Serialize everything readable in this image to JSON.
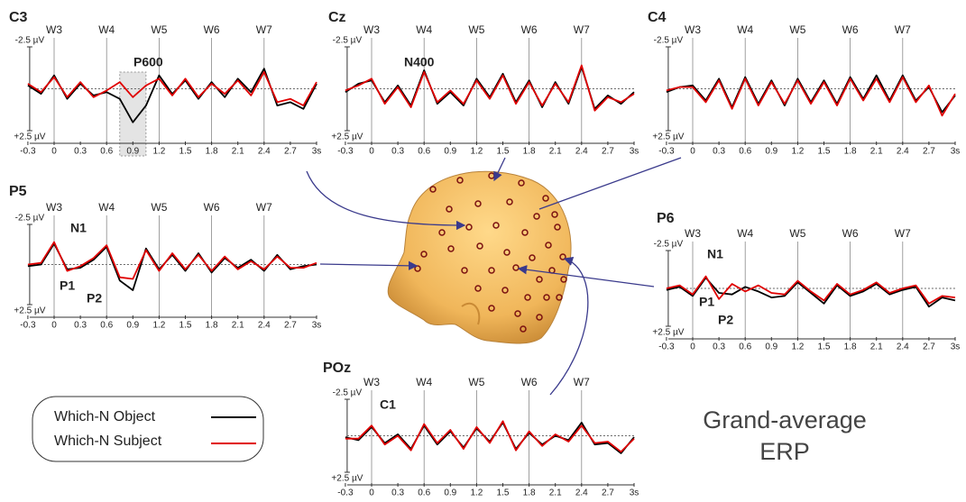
{
  "chart_data": [
    {
      "type": "line",
      "title": "C3",
      "x": [
        -0.3,
        -0.15,
        0,
        0.15,
        0.3,
        0.45,
        0.6,
        0.75,
        0.9,
        1.05,
        1.2,
        1.35,
        1.5,
        1.65,
        1.8,
        1.95,
        2.1,
        2.25,
        2.4,
        2.55,
        2.7,
        2.85,
        3.0
      ],
      "series": [
        {
          "name": "Which-N Object",
          "color": "#000000",
          "values": [
            -0.2,
            0.3,
            -0.8,
            0.6,
            -0.3,
            0.4,
            0.2,
            0.6,
            2.0,
            1.0,
            -0.8,
            0.3,
            -0.5,
            0.6,
            -0.4,
            0.5,
            -0.6,
            0.2,
            -1.2,
            1.0,
            0.8,
            1.2,
            -0.3
          ]
        },
        {
          "name": "Which-N Subject",
          "color": "#e00000",
          "values": [
            -0.3,
            0.2,
            -0.7,
            0.5,
            -0.4,
            0.5,
            0.1,
            -0.4,
            0.5,
            -0.2,
            -0.6,
            0.4,
            -0.6,
            0.5,
            -0.3,
            0.3,
            -0.5,
            0.4,
            -1.0,
            0.8,
            0.6,
            1.0,
            -0.4
          ]
        }
      ],
      "xlim": [
        -0.3,
        3
      ],
      "ylim": [
        2.5,
        -2.5
      ],
      "xticks": [
        -0.3,
        0,
        0.3,
        0.6,
        0.9,
        1.2,
        1.5,
        1.8,
        2.1,
        2.4,
        2.7,
        {
          "value": 3,
          "label": "3s"
        }
      ],
      "yticks": [
        {
          "value": -2.5,
          "label": "-2.5 µV"
        },
        {
          "value": 2.5,
          "label": "+2.5 µV"
        }
      ],
      "markers": [
        {
          "value": 0,
          "label": "W3"
        },
        {
          "value": 0.6,
          "label": "W4"
        },
        {
          "value": 1.2,
          "label": "W5"
        },
        {
          "value": 1.8,
          "label": "W6"
        },
        {
          "value": 2.4,
          "label": "W7"
        }
      ],
      "span": [
        0.75,
        1.05
      ],
      "annotations": [
        "P600"
      ]
    },
    {
      "type": "line",
      "title": "Cz",
      "x": [
        -0.3,
        -0.15,
        0,
        0.15,
        0.3,
        0.45,
        0.6,
        0.75,
        0.9,
        1.05,
        1.2,
        1.35,
        1.5,
        1.65,
        1.8,
        1.95,
        2.1,
        2.25,
        2.4,
        2.55,
        2.7,
        2.85,
        3.0
      ],
      "series": [
        {
          "name": "Which-N Object",
          "color": "#000000",
          "values": [
            0.2,
            -0.3,
            -0.5,
            0.8,
            -0.2,
            1.0,
            -1.1,
            0.9,
            0.2,
            1.0,
            -0.6,
            0.5,
            -0.9,
            0.8,
            -0.5,
            1.1,
            -0.4,
            0.9,
            -1.3,
            1.2,
            0.4,
            0.9,
            0.2
          ]
        },
        {
          "name": "Which-N Subject",
          "color": "#e00000",
          "values": [
            0.1,
            -0.2,
            -0.6,
            0.9,
            -0.1,
            1.1,
            -1.0,
            0.8,
            0.1,
            0.9,
            -0.5,
            0.6,
            -0.8,
            0.9,
            -0.4,
            1.0,
            -0.3,
            0.8,
            -1.4,
            1.3,
            0.5,
            0.8,
            0.3
          ]
        }
      ],
      "xlim": [
        -0.3,
        3
      ],
      "ylim": [
        2.5,
        -2.5
      ],
      "xticks": [
        -0.3,
        0,
        0.3,
        0.6,
        0.9,
        1.2,
        1.5,
        1.8,
        2.1,
        2.4,
        2.7,
        {
          "value": 3,
          "label": "3s"
        }
      ],
      "yticks": [
        {
          "value": -2.5,
          "label": "-2.5 µV"
        },
        {
          "value": 2.5,
          "label": "+2.5 µV"
        }
      ],
      "markers": [
        {
          "value": 0,
          "label": "W3"
        },
        {
          "value": 0.6,
          "label": "W4"
        },
        {
          "value": 1.2,
          "label": "W5"
        },
        {
          "value": 1.8,
          "label": "W6"
        },
        {
          "value": 2.4,
          "label": "W7"
        }
      ],
      "annotations": [
        "N400"
      ]
    },
    {
      "type": "line",
      "title": "C4",
      "x": [
        -0.3,
        -0.15,
        0,
        0.15,
        0.3,
        0.45,
        0.6,
        0.75,
        0.9,
        1.05,
        1.2,
        1.35,
        1.5,
        1.65,
        1.8,
        1.95,
        2.1,
        2.25,
        2.4,
        2.55,
        2.7,
        2.85,
        3.0
      ],
      "series": [
        {
          "name": "Which-N Object",
          "color": "#000000",
          "values": [
            0.2,
            -0.1,
            -0.2,
            0.7,
            -0.6,
            1.1,
            -0.7,
            0.9,
            -0.5,
            1.0,
            -0.6,
            0.8,
            -0.5,
            0.9,
            -0.7,
            0.6,
            -0.8,
            0.7,
            -0.8,
            0.7,
            -0.1,
            1.4,
            0.4
          ]
        },
        {
          "name": "Which-N Subject",
          "color": "#e00000",
          "values": [
            0.1,
            -0.1,
            -0.1,
            0.8,
            -0.5,
            1.2,
            -0.6,
            1.0,
            -0.4,
            0.9,
            -0.5,
            0.9,
            -0.4,
            1.0,
            -0.6,
            0.7,
            -0.6,
            0.8,
            -0.7,
            0.8,
            -0.2,
            1.6,
            0.3
          ]
        }
      ],
      "xlim": [
        -0.3,
        3
      ],
      "ylim": [
        2.5,
        -2.5
      ],
      "xticks": [
        -0.3,
        0,
        0.3,
        0.6,
        0.9,
        1.2,
        1.5,
        1.8,
        2.1,
        2.4,
        2.7,
        {
          "value": 3,
          "label": "3s"
        }
      ],
      "yticks": [
        {
          "value": -2.5,
          "label": "-2.5 µV"
        },
        {
          "value": 2.5,
          "label": "+2.5 µV"
        }
      ],
      "markers": [
        {
          "value": 0,
          "label": "W3"
        },
        {
          "value": 0.6,
          "label": "W4"
        },
        {
          "value": 1.2,
          "label": "W5"
        },
        {
          "value": 1.8,
          "label": "W6"
        },
        {
          "value": 2.4,
          "label": "W7"
        }
      ]
    },
    {
      "type": "line",
      "title": "P5",
      "x": [
        -0.3,
        -0.15,
        0,
        0.15,
        0.3,
        0.45,
        0.6,
        0.75,
        0.9,
        1.05,
        1.2,
        1.35,
        1.5,
        1.65,
        1.8,
        1.95,
        2.1,
        2.25,
        2.4,
        2.55,
        2.7,
        2.85,
        3.0
      ],
      "series": [
        {
          "name": "Which-N Object",
          "color": "#000000",
          "values": [
            0.1,
            0.0,
            -1.3,
            0.3,
            0.2,
            -0.3,
            -1.1,
            1.0,
            1.6,
            -1.0,
            0.3,
            -0.6,
            0.4,
            -0.7,
            0.5,
            -0.4,
            0.2,
            -0.3,
            0.4,
            -0.6,
            0.3,
            0.1,
            0.0
          ]
        },
        {
          "name": "Which-N Subject",
          "color": "#e00000",
          "values": [
            0.0,
            -0.1,
            -1.4,
            0.4,
            0.1,
            -0.4,
            -1.2,
            0.8,
            0.9,
            -0.9,
            0.4,
            -0.7,
            0.3,
            -0.6,
            0.4,
            -0.5,
            0.3,
            -0.2,
            0.3,
            -0.5,
            0.2,
            0.2,
            -0.1
          ]
        }
      ],
      "xlim": [
        -0.3,
        3
      ],
      "ylim": [
        2.5,
        -2.5
      ],
      "xticks": [
        -0.3,
        0,
        0.3,
        0.6,
        0.9,
        1.2,
        1.5,
        1.8,
        2.1,
        2.4,
        2.7,
        {
          "value": 3,
          "label": "3s"
        }
      ],
      "yticks": [
        {
          "value": -2.5,
          "label": "-2.5 µV"
        },
        {
          "value": 2.5,
          "label": "+2.5 µV"
        }
      ],
      "markers": [
        {
          "value": 0,
          "label": "W3"
        },
        {
          "value": 0.6,
          "label": "W4"
        },
        {
          "value": 1.2,
          "label": "W5"
        },
        {
          "value": 1.8,
          "label": "W6"
        },
        {
          "value": 2.4,
          "label": "W7"
        }
      ],
      "annotations": [
        "N1",
        "P1",
        "P2"
      ]
    },
    {
      "type": "line",
      "title": "P6",
      "x": [
        -0.3,
        -0.15,
        0,
        0.15,
        0.3,
        0.45,
        0.6,
        0.75,
        0.9,
        1.05,
        1.2,
        1.35,
        1.5,
        1.65,
        1.8,
        1.95,
        2.1,
        2.25,
        2.4,
        2.55,
        2.7,
        2.85,
        3.0
      ],
      "series": [
        {
          "name": "Which-N Object",
          "color": "#000000",
          "values": [
            0.1,
            -0.1,
            0.5,
            -0.7,
            0.3,
            0.4,
            -0.1,
            0.2,
            0.6,
            0.5,
            -0.4,
            0.3,
            1.0,
            -0.2,
            0.5,
            0.2,
            -0.3,
            0.4,
            0.1,
            -0.1,
            1.2,
            0.6,
            0.8
          ]
        },
        {
          "name": "Which-N Subject",
          "color": "#e00000",
          "values": [
            0.0,
            -0.2,
            0.4,
            -0.8,
            0.7,
            -0.3,
            0.2,
            -0.2,
            0.3,
            0.4,
            -0.5,
            0.2,
            0.8,
            -0.3,
            0.4,
            0.1,
            -0.4,
            0.3,
            0.0,
            -0.2,
            1.0,
            0.5,
            0.6
          ]
        }
      ],
      "xlim": [
        -0.3,
        3
      ],
      "ylim": [
        2.5,
        -2.5
      ],
      "xticks": [
        -0.3,
        0,
        0.3,
        0.6,
        0.9,
        1.2,
        1.5,
        1.8,
        2.1,
        2.4,
        2.7,
        {
          "value": 3,
          "label": "3s"
        }
      ],
      "yticks": [
        {
          "value": -2.5,
          "label": "-2.5 µV"
        },
        {
          "value": 2.5,
          "label": "+2.5 µV"
        }
      ],
      "markers": [
        {
          "value": 0,
          "label": "W3"
        },
        {
          "value": 0.6,
          "label": "W4"
        },
        {
          "value": 1.2,
          "label": "W5"
        },
        {
          "value": 1.8,
          "label": "W6"
        },
        {
          "value": 2.4,
          "label": "W7"
        }
      ],
      "annotations": [
        "N1",
        "P1",
        "P2"
      ]
    },
    {
      "type": "line",
      "title": "POz",
      "x": [
        -0.3,
        -0.15,
        0,
        0.15,
        0.3,
        0.45,
        0.6,
        0.75,
        0.9,
        1.05,
        1.2,
        1.35,
        1.5,
        1.65,
        1.8,
        1.95,
        2.1,
        2.25,
        2.4,
        2.55,
        2.7,
        2.85,
        3.0
      ],
      "series": [
        {
          "name": "Which-N Object",
          "color": "#000000",
          "values": [
            0.1,
            0.3,
            -0.6,
            0.5,
            -0.1,
            0.9,
            -0.7,
            0.6,
            -0.3,
            0.8,
            -0.5,
            0.4,
            -0.9,
            0.9,
            -0.2,
            0.6,
            0.0,
            0.3,
            -0.9,
            0.6,
            0.5,
            1.2,
            0.1
          ]
        },
        {
          "name": "Which-N Subject",
          "color": "#e00000",
          "values": [
            0.2,
            0.2,
            -0.7,
            0.6,
            0.0,
            1.0,
            -0.8,
            0.5,
            -0.4,
            0.9,
            -0.6,
            0.5,
            -1.0,
            1.0,
            -0.3,
            0.7,
            -0.1,
            0.4,
            -0.7,
            0.5,
            0.4,
            1.1,
            0.2
          ]
        }
      ],
      "xlim": [
        -0.3,
        3
      ],
      "ylim": [
        2.5,
        -2.5
      ],
      "xticks": [
        -0.3,
        0,
        0.3,
        0.6,
        0.9,
        1.2,
        1.5,
        1.8,
        2.1,
        2.4,
        2.7,
        {
          "value": 3,
          "label": "3s"
        }
      ],
      "yticks": [
        {
          "value": -2.5,
          "label": "-2.5 µV"
        },
        {
          "value": 2.5,
          "label": "+2.5 µV"
        }
      ],
      "markers": [
        {
          "value": 0,
          "label": "W3"
        },
        {
          "value": 0.6,
          "label": "W4"
        },
        {
          "value": 1.2,
          "label": "W5"
        },
        {
          "value": 1.8,
          "label": "W6"
        },
        {
          "value": 2.4,
          "label": "W7"
        }
      ],
      "annotations": [
        "C1"
      ]
    }
  ],
  "caption": [
    "Grand-average",
    "ERP"
  ]
}
